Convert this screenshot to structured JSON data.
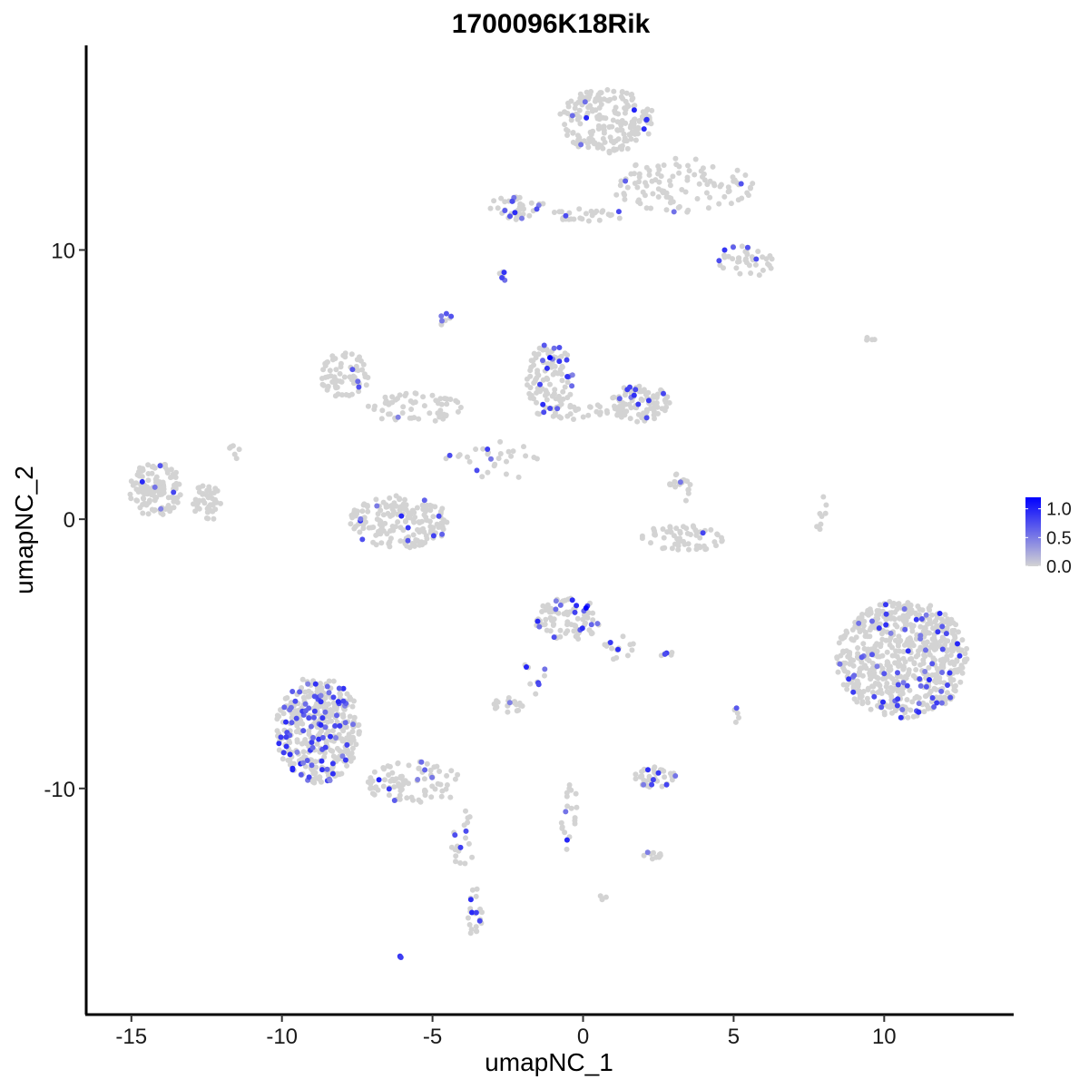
{
  "chart_data": {
    "type": "scatter",
    "title": "1700096K18Rik",
    "xlabel": "umapNC_1",
    "ylabel": "umapNC_2",
    "xlim": [
      -16.5,
      14.3
    ],
    "ylim": [
      -18.4,
      17.6
    ],
    "x_ticks": [
      -15,
      -10,
      -5,
      0,
      5,
      10
    ],
    "x_tick_labels": [
      "-15",
      "-10",
      "-5",
      "0",
      "5",
      "10"
    ],
    "y_ticks": [
      10,
      0,
      -10
    ],
    "y_tick_labels": [
      "10",
      "0",
      "-10"
    ],
    "grid": false,
    "legend_position": "right",
    "color_scale": {
      "low": "#d3d3d3",
      "high": "#0000ff",
      "range": [
        0,
        1.2
      ],
      "breaks": [
        1.0,
        0.5,
        0.0
      ],
      "break_labels": [
        "1.0",
        "0.5",
        "0.0"
      ]
    },
    "clusters": [
      {
        "cx": 0.8,
        "cy": 14.8,
        "rx": 1.6,
        "ry": 1.2,
        "n": 200,
        "frac": 0.06
      },
      {
        "cx": 3.3,
        "cy": 12.4,
        "rx": 2.4,
        "ry": 1.0,
        "n": 110,
        "frac": 0.04
      },
      {
        "cx": 5.4,
        "cy": 9.6,
        "rx": 1.0,
        "ry": 0.6,
        "n": 40,
        "frac": 0.08
      },
      {
        "cx": -2.2,
        "cy": 11.6,
        "rx": 0.9,
        "ry": 0.5,
        "n": 45,
        "frac": 0.15
      },
      {
        "cx": 0.2,
        "cy": 11.3,
        "rx": 1.3,
        "ry": 0.25,
        "n": 30,
        "frac": 0.06
      },
      {
        "cx": -2.7,
        "cy": 8.9,
        "rx": 0.2,
        "ry": 0.3,
        "n": 6,
        "frac": 0.4
      },
      {
        "cx": -4.6,
        "cy": 7.3,
        "rx": 0.3,
        "ry": 0.4,
        "n": 8,
        "frac": 0.4
      },
      {
        "cx": -7.9,
        "cy": 5.3,
        "rx": 0.8,
        "ry": 0.9,
        "n": 70,
        "frac": 0.02
      },
      {
        "cx": -5.6,
        "cy": 4.1,
        "rx": 1.6,
        "ry": 0.6,
        "n": 60,
        "frac": 0.03
      },
      {
        "cx": -1.1,
        "cy": 5.2,
        "rx": 0.8,
        "ry": 1.3,
        "n": 100,
        "frac": 0.15
      },
      {
        "cx": 1.9,
        "cy": 4.3,
        "rx": 1.0,
        "ry": 0.7,
        "n": 90,
        "frac": 0.1
      },
      {
        "cx": -0.1,
        "cy": 4.0,
        "rx": 1.6,
        "ry": 0.3,
        "n": 35,
        "frac": 0.05
      },
      {
        "cx": -3.0,
        "cy": 2.2,
        "rx": 1.6,
        "ry": 0.8,
        "n": 30,
        "frac": 0.1
      },
      {
        "cx": -14.2,
        "cy": 1.1,
        "rx": 0.9,
        "ry": 1.0,
        "n": 130,
        "frac": 0.03
      },
      {
        "cx": -12.5,
        "cy": 0.6,
        "rx": 0.5,
        "ry": 0.7,
        "n": 40,
        "frac": 0.0
      },
      {
        "cx": -11.6,
        "cy": 2.5,
        "rx": 0.2,
        "ry": 0.3,
        "n": 6,
        "frac": 0.0
      },
      {
        "cx": -6.1,
        "cy": -0.1,
        "rx": 1.7,
        "ry": 1.0,
        "n": 180,
        "frac": 0.07
      },
      {
        "cx": 3.3,
        "cy": -0.7,
        "rx": 1.4,
        "ry": 0.5,
        "n": 60,
        "frac": 0.05
      },
      {
        "cx": 3.2,
        "cy": 1.0,
        "rx": 0.4,
        "ry": 0.7,
        "n": 20,
        "frac": 0.05
      },
      {
        "cx": 7.9,
        "cy": 0.3,
        "rx": 0.2,
        "ry": 0.9,
        "n": 8,
        "frac": 0.0
      },
      {
        "cx": 10.6,
        "cy": -5.2,
        "rx": 2.2,
        "ry": 2.2,
        "n": 650,
        "frac": 0.09
      },
      {
        "cx": -0.5,
        "cy": -3.7,
        "rx": 1.1,
        "ry": 0.8,
        "n": 90,
        "frac": 0.12
      },
      {
        "cx": 1.2,
        "cy": -4.8,
        "rx": 0.5,
        "ry": 0.5,
        "n": 15,
        "frac": 0.15
      },
      {
        "cx": -1.6,
        "cy": -5.8,
        "rx": 0.4,
        "ry": 0.8,
        "n": 10,
        "frac": 0.4
      },
      {
        "cx": -2.5,
        "cy": -6.9,
        "rx": 0.5,
        "ry": 0.3,
        "n": 20,
        "frac": 0.1
      },
      {
        "cx": -8.8,
        "cy": -7.8,
        "rx": 1.4,
        "ry": 2.0,
        "n": 400,
        "frac": 0.22
      },
      {
        "cx": -5.6,
        "cy": -9.8,
        "rx": 1.6,
        "ry": 0.8,
        "n": 90,
        "frac": 0.12
      },
      {
        "cx": -4.0,
        "cy": -12.0,
        "rx": 0.4,
        "ry": 1.2,
        "n": 20,
        "frac": 0.1
      },
      {
        "cx": -3.6,
        "cy": -14.6,
        "rx": 0.3,
        "ry": 0.9,
        "n": 22,
        "frac": 0.2
      },
      {
        "cx": 2.4,
        "cy": -9.6,
        "rx": 0.7,
        "ry": 0.4,
        "n": 40,
        "frac": 0.15
      },
      {
        "cx": 2.3,
        "cy": -12.5,
        "rx": 0.3,
        "ry": 0.3,
        "n": 10,
        "frac": 0.2
      },
      {
        "cx": -0.5,
        "cy": -10.7,
        "rx": 0.3,
        "ry": 1.6,
        "n": 20,
        "frac": 0.2
      },
      {
        "cx": 5.1,
        "cy": -7.3,
        "rx": 0.1,
        "ry": 0.3,
        "n": 5,
        "frac": 0.5
      },
      {
        "cx": 2.8,
        "cy": -4.9,
        "rx": 0.4,
        "ry": 0.2,
        "n": 6,
        "frac": 0.1
      },
      {
        "cx": 9.4,
        "cy": 6.7,
        "rx": 0.3,
        "ry": 0.1,
        "n": 4,
        "frac": 0.0
      },
      {
        "cx": 0.6,
        "cy": -14.0,
        "rx": 0.2,
        "ry": 0.2,
        "n": 4,
        "frac": 0.0
      },
      {
        "cx": -6.0,
        "cy": -16.2,
        "rx": 0.1,
        "ry": 0.1,
        "n": 3,
        "frac": 0.6
      }
    ],
    "highlighted_points": [
      {
        "x": -1.1,
        "y": 6.0,
        "v": 1.2
      },
      {
        "x": 0.1,
        "y": -3.3,
        "v": 1.2
      },
      {
        "x": 1.7,
        "y": 15.2,
        "v": 1.0
      },
      {
        "x": 4.7,
        "y": 10.0,
        "v": 0.9
      },
      {
        "x": -13.6,
        "y": 1.0,
        "v": 0.8
      }
    ]
  }
}
